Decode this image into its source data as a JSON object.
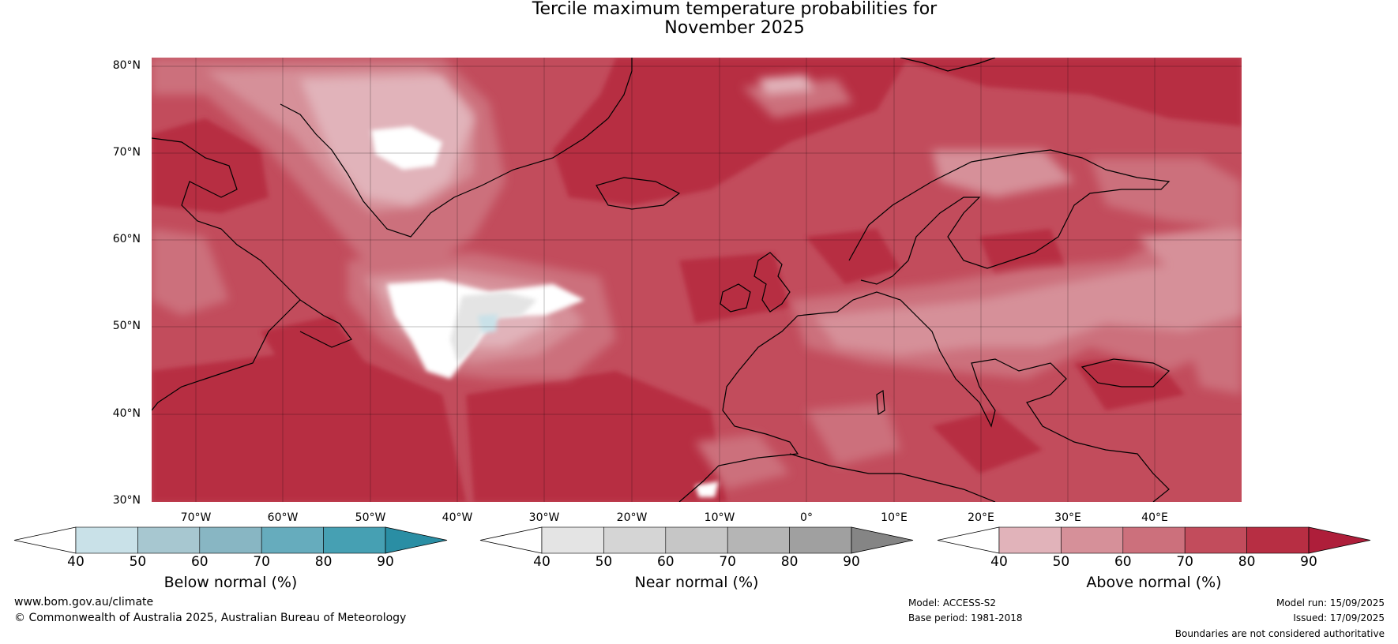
{
  "title": {
    "line1": "Tercile maximum temperature probabilities for",
    "line2": "November 2025"
  },
  "map": {
    "lat_labels": [
      "80°N",
      "70°N",
      "60°N",
      "50°N",
      "40°N",
      "30°N"
    ],
    "lon_labels": [
      "70°W",
      "60°W",
      "50°W",
      "40°W",
      "30°W",
      "20°W",
      "10°W",
      "0°",
      "10°E",
      "20°E",
      "30°E",
      "40°E"
    ],
    "lat_range": [
      30,
      81
    ],
    "lon_range": [
      -77.5,
      47.5
    ],
    "dominant_category": "Above normal"
  },
  "colorbars": [
    {
      "label": "Below normal (%)",
      "ticks": [
        "40",
        "50",
        "60",
        "70",
        "80",
        "90"
      ],
      "colors": [
        "#ffffff",
        "#c9e1e8",
        "#a7c7d0",
        "#88b6c3",
        "#66acbd",
        "#46a0b3",
        "#2a8ea4"
      ]
    },
    {
      "label": "Near normal (%)",
      "ticks": [
        "40",
        "50",
        "60",
        "70",
        "80",
        "90"
      ],
      "colors": [
        "#ffffff",
        "#e4e4e4",
        "#d5d5d5",
        "#c6c6c6",
        "#b5b5b5",
        "#a0a0a0",
        "#858585"
      ]
    },
    {
      "label": "Above normal (%)",
      "ticks": [
        "40",
        "50",
        "60",
        "70",
        "80",
        "90"
      ],
      "colors": [
        "#ffffff",
        "#e1b3ba",
        "#d69099",
        "#cc707c",
        "#c24c5c",
        "#b72e43",
        "#ae1e3a"
      ]
    }
  ],
  "footer": {
    "website": "www.bom.gov.au/climate",
    "copyright": "© Commonwealth of Australia 2025, Australian Bureau of Meteorology",
    "model": "Model: ACCESS-S2",
    "base_period": "Base period: 1981-2018",
    "model_run": "Model run: 15/09/2025",
    "issued": "Issued: 17/09/2025",
    "boundaries": "Boundaries are not considered authoritative"
  }
}
